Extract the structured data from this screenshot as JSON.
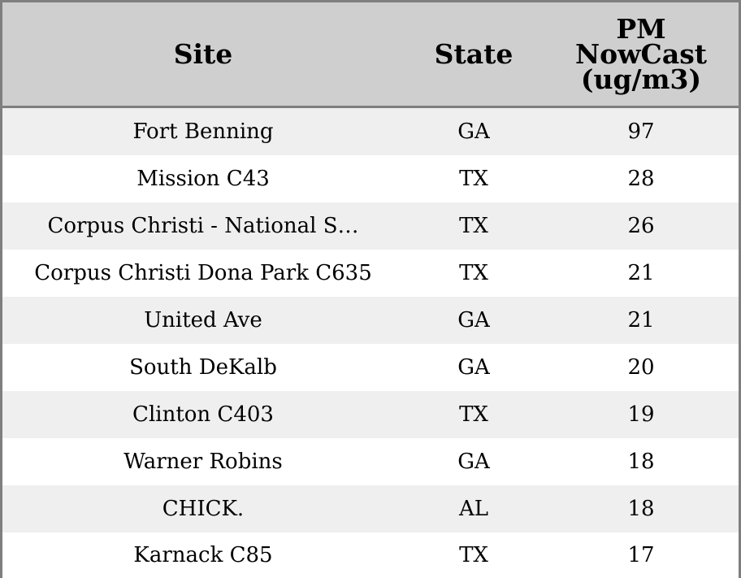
{
  "chart_data": {
    "type": "table",
    "columns": [
      "Site",
      "State",
      "PM NowCast (ug/m3)"
    ],
    "header_lines": {
      "site": "Site",
      "state": "State",
      "value": "PM\nNowCast\n(ug/m3)"
    },
    "rows": [
      {
        "site": "Fort Benning",
        "state": "GA",
        "value": "97"
      },
      {
        "site": "Mission C43",
        "state": "TX",
        "value": "28"
      },
      {
        "site": "Corpus Christi - National S…",
        "state": "TX",
        "value": "26"
      },
      {
        "site": "Corpus Christi Dona Park C635",
        "state": "TX",
        "value": "21"
      },
      {
        "site": "United Ave",
        "state": "GA",
        "value": "21"
      },
      {
        "site": "South DeKalb",
        "state": "GA",
        "value": "20"
      },
      {
        "site": "Clinton C403",
        "state": "TX",
        "value": "19"
      },
      {
        "site": "Warner Robins",
        "state": "GA",
        "value": "18"
      },
      {
        "site": "CHICK.",
        "state": "AL",
        "value": "18"
      },
      {
        "site": "Karnack C85",
        "state": "TX",
        "value": "17"
      }
    ]
  },
  "colors": {
    "header_bg": "#cfcfcf",
    "stripe_bg": "#efefef",
    "row_bg": "#ffffff",
    "border": "#7f7f7f"
  }
}
